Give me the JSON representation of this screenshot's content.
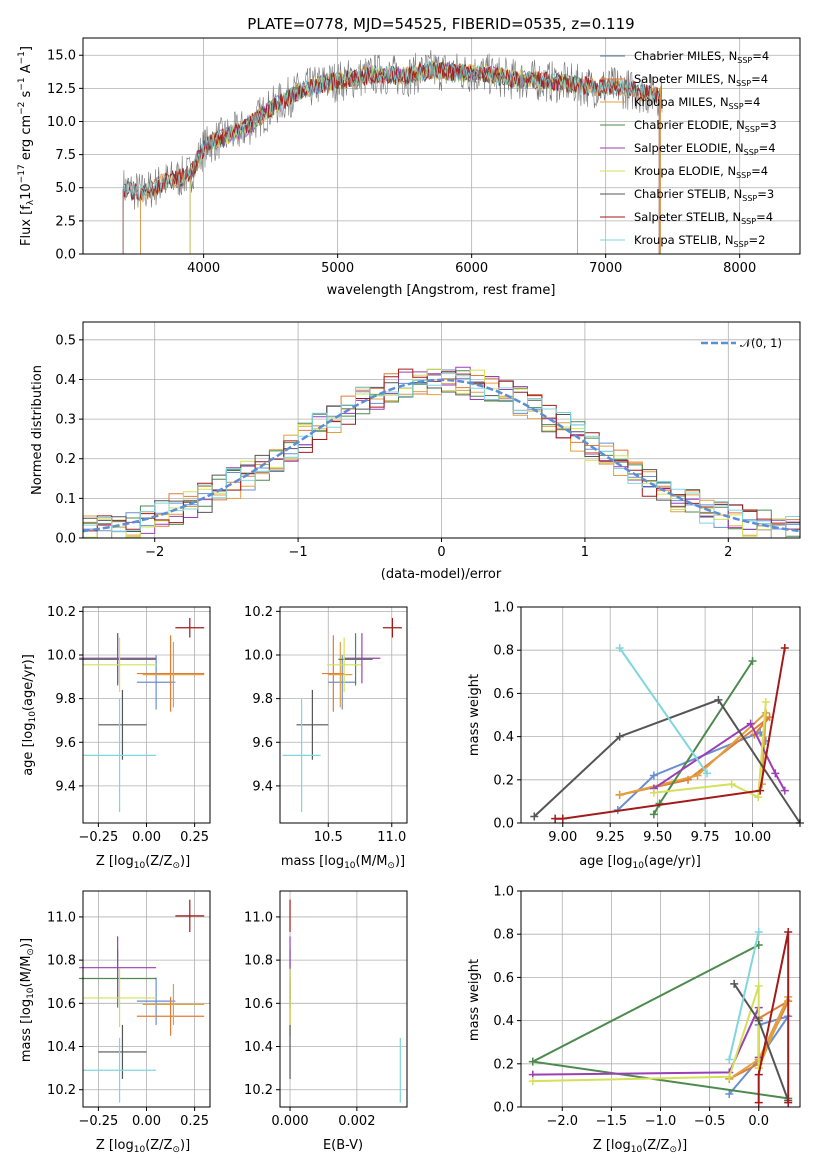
{
  "chart_data": [
    {
      "type": "line",
      "title": "PLATE=0778, MJD=54525, FIBERID=0535, z=0.119",
      "xlabel": "wavelength [Angstrom, rest frame]",
      "ylabel_main": "Flux [f",
      "ylabel_sub": "λ",
      "ylabel_rest": "10",
      "ylabel_exp": "−17",
      "ylabel_units": " erg cm",
      "ylabel_cm_exp": "−2",
      "ylabel_s": " s",
      "ylabel_s_exp": "−1",
      "ylabel_A": " A",
      "ylabel_A_exp": "−1",
      "ylabel_close": "]",
      "xlim": [
        3100,
        8450
      ],
      "ylim": [
        0,
        16.3
      ],
      "xticks": [
        4000,
        5000,
        6000,
        7000,
        8000
      ],
      "xtick_labels": [
        "4000",
        "5000",
        "6000",
        "7000",
        "8000"
      ],
      "yticks": [
        0,
        2.5,
        5,
        7.5,
        10,
        12.5,
        15
      ],
      "ytick_labels": [
        "0.0",
        "2.5",
        "5.0",
        "7.5",
        "10.0",
        "12.5",
        "15.0"
      ],
      "legend_position": "right",
      "series": [
        {
          "name": "Chabrier MILES, N",
          "sub": "SSP",
          "tail": "=4",
          "color": "#5a7d9a",
          "start": 3530,
          "end": 7410
        },
        {
          "name": "Salpeter MILES, N",
          "sub": "SSP",
          "tail": "=4",
          "color": "#e07b39",
          "start": 3530,
          "end": 7410
        },
        {
          "name": "Kroupa MILES, N",
          "sub": "SSP",
          "tail": "=4",
          "color": "#e0a040",
          "start": 3530,
          "end": 7410
        },
        {
          "name": "Chabrier ELODIE, N",
          "sub": "SSP",
          "tail": "=3",
          "color": "#4d8a4d",
          "start": 3900,
          "end": 6790
        },
        {
          "name": "Salpeter ELODIE, N",
          "sub": "SSP",
          "tail": "=4",
          "color": "#9a3fb5",
          "start": 3900,
          "end": 6790
        },
        {
          "name": "Kroupa ELODIE, N",
          "sub": "SSP",
          "tail": "=4",
          "color": "#d4e05a",
          "start": 3900,
          "end": 6790
        },
        {
          "name": "Chabrier STELIB, N",
          "sub": "SSP",
          "tail": "=3",
          "color": "#555555",
          "start": 3400,
          "end": 7400
        },
        {
          "name": "Salpeter STELIB, N",
          "sub": "SSP",
          "tail": "=4",
          "color": "#a31a1a",
          "start": 3400,
          "end": 7400
        },
        {
          "name": "Kroupa STELIB, N",
          "sub": "SSP",
          "tail": "=2",
          "color": "#7fd6dc",
          "start": 3400,
          "end": 7400
        }
      ],
      "continuum": [
        [
          3400,
          5.0
        ],
        [
          3550,
          4.6
        ],
        [
          3700,
          5.4
        ],
        [
          3900,
          6.0
        ],
        [
          4000,
          8.0
        ],
        [
          4100,
          8.6
        ],
        [
          4300,
          9.4
        ],
        [
          4500,
          11.0
        ],
        [
          4700,
          12.2
        ],
        [
          4900,
          12.9
        ],
        [
          5100,
          13.2
        ],
        [
          5300,
          13.6
        ],
        [
          5500,
          13.4
        ],
        [
          5700,
          13.9
        ],
        [
          5900,
          13.7
        ],
        [
          6100,
          13.6
        ],
        [
          6300,
          13.2
        ],
        [
          6500,
          13.1
        ],
        [
          6700,
          12.9
        ],
        [
          6900,
          12.6
        ],
        [
          7100,
          12.6
        ],
        [
          7300,
          12.1
        ],
        [
          7400,
          12.0
        ]
      ]
    },
    {
      "type": "bar",
      "xlabel": "(data-model)/error",
      "ylabel": "Normed distribution",
      "xlim": [
        -2.5,
        2.5
      ],
      "ylim": [
        0,
        0.545
      ],
      "xticks": [
        -2,
        -1,
        0,
        1,
        2
      ],
      "xtick_labels": [
        "−2",
        "−1",
        "0",
        "1",
        "2"
      ],
      "yticks": [
        0,
        0.1,
        0.2,
        0.3,
        0.4,
        0.5
      ],
      "ytick_labels": [
        "0.0",
        "0.1",
        "0.2",
        "0.3",
        "0.4",
        "0.5"
      ],
      "legend_label": "𝒩(0, 1)",
      "legend_position": "top-right",
      "gauss_color": "#5a8fd6",
      "hist_colors": [
        "#6a8fd0",
        "#e07b39",
        "#e0a040",
        "#4d8a4d",
        "#9a3fb5",
        "#d4e05a",
        "#555555",
        "#a31a1a",
        "#7fd6dc"
      ]
    },
    {
      "type": "scatter",
      "xlabel": "Z [log",
      "xlabel_sub": "10",
      "xlabel_rest": "(Z/Z",
      "xlabel_odot": "⊙",
      "xlabel_close": ")]",
      "ylabel": "age  [log",
      "ylabel_sub": "10",
      "ylabel_rest": "(age/yr)]",
      "xlim": [
        -0.33,
        0.33
      ],
      "ylim": [
        9.23,
        10.22
      ],
      "xticks": [
        -0.25,
        0,
        0.25
      ],
      "xtick_labels": [
        "−0.25",
        "0.00",
        "0.25"
      ],
      "yticks": [
        9.4,
        9.6,
        9.8,
        10.0,
        10.2
      ],
      "ytick_labels": [
        "9.4",
        "9.6",
        "9.8",
        "10.0",
        "10.2"
      ]
    },
    {
      "type": "scatter",
      "xlabel": "mass [log",
      "xlabel_sub": "10",
      "xlabel_rest": "(M/M",
      "xlabel_odot": "⊙",
      "xlabel_close": ")]",
      "xlim": [
        10.12,
        11.12
      ],
      "ylim": [
        9.23,
        10.22
      ],
      "xticks": [
        10.5,
        11.0
      ],
      "xtick_labels": [
        "10.5",
        "11.0"
      ],
      "yticks": [
        9.4,
        9.6,
        9.8,
        10.0,
        10.2
      ],
      "ytick_labels": [
        "9.4",
        "9.6",
        "9.8",
        "10.0",
        "10.2"
      ]
    },
    {
      "type": "line",
      "xlabel": "age  [log",
      "xlabel_sub": "10",
      "xlabel_rest": "(age/yr)]",
      "ylabel": "mass weight",
      "xlim": [
        8.78,
        10.25
      ],
      "ylim": [
        0,
        1
      ],
      "xticks": [
        9.0,
        9.25,
        9.5,
        9.75,
        10.0
      ],
      "xtick_labels": [
        "9.00",
        "9.25",
        "9.50",
        "9.75",
        "10.00"
      ],
      "yticks": [
        0,
        0.2,
        0.4,
        0.6,
        0.8,
        1.0
      ],
      "ytick_labels": [
        "0.0",
        "0.2",
        "0.4",
        "0.6",
        "0.8",
        "1.0"
      ]
    },
    {
      "type": "scatter",
      "xlabel": "Z [log",
      "xlabel_sub": "10",
      "xlabel_rest": "(Z/Z",
      "xlabel_odot": "⊙",
      "xlabel_close": ")]",
      "ylabel": "mass [log",
      "ylabel_sub": "10",
      "ylabel_rest": "(M/M",
      "ylabel_odot": "⊙",
      "ylabel_close": ")]",
      "xlim": [
        -0.33,
        0.33
      ],
      "ylim": [
        10.12,
        11.12
      ],
      "xticks": [
        -0.25,
        0,
        0.25
      ],
      "xtick_labels": [
        "−0.25",
        "0.00",
        "0.25"
      ],
      "yticks": [
        10.2,
        10.4,
        10.6,
        10.8,
        11.0
      ],
      "ytick_labels": [
        "10.2",
        "10.4",
        "10.6",
        "10.8",
        "11.0"
      ]
    },
    {
      "type": "scatter",
      "xlabel": "E(B-V)",
      "xlim": [
        -0.0003,
        0.0035
      ],
      "ylim": [
        10.12,
        11.12
      ],
      "xticks": [
        0,
        0.002
      ],
      "xtick_labels": [
        "0.000",
        "0.002"
      ],
      "yticks": [
        10.2,
        10.4,
        10.6,
        10.8,
        11.0
      ],
      "ytick_labels": [
        "10.2",
        "10.4",
        "10.6",
        "10.8",
        "11.0"
      ]
    },
    {
      "type": "line",
      "xlabel": "Z [log",
      "xlabel_sub": "10",
      "xlabel_rest": "(Z/Z",
      "xlabel_odot": "⊙",
      "xlabel_close": ")]",
      "ylabel": "mass weight",
      "xlim": [
        -2.42,
        0.42
      ],
      "ylim": [
        0,
        1
      ],
      "xticks": [
        -2.0,
        -1.5,
        -1.0,
        -0.5,
        0.0
      ],
      "xtick_labels": [
        "−2.0",
        "−1.5",
        "−1.0",
        "−0.5",
        "0.0"
      ],
      "yticks": [
        0,
        0.2,
        0.4,
        0.6,
        0.8,
        1.0
      ],
      "ytick_labels": [
        "0.0",
        "0.2",
        "0.4",
        "0.6",
        "0.8",
        "1.0"
      ]
    }
  ],
  "models": [
    {
      "color": "#6a8fd0",
      "Z": [
        -0.05,
        0.15
      ],
      "age": [
        9.75,
        10.0
      ],
      "mass": [
        10.5,
        10.72
      ],
      "ebv": 0.0
    },
    {
      "color": "#e07b39",
      "Z": [
        -0.05,
        0.3
      ],
      "age": [
        9.74,
        10.09
      ],
      "mass": [
        10.45,
        10.63
      ],
      "ebv": 0.0
    },
    {
      "color": "#e0a040",
      "Z": [
        -0.02,
        0.3
      ],
      "age": [
        9.76,
        10.06
      ],
      "mass": [
        10.5,
        10.69
      ],
      "ebv": 0.0
    },
    {
      "color": "#4d8a4d",
      "Z": [
        -0.35,
        0.05
      ],
      "age": [
        9.86,
        10.1
      ],
      "mass": [
        10.58,
        10.85
      ],
      "ebv": 0.0
    },
    {
      "color": "#9a3fb5",
      "Z": [
        -0.35,
        0.05
      ],
      "age": [
        9.87,
        10.1
      ],
      "mass": [
        10.62,
        10.91
      ],
      "ebv": 0.0
    },
    {
      "color": "#d4e05a",
      "Z": [
        -0.33,
        0.05
      ],
      "age": [
        9.83,
        10.08
      ],
      "mass": [
        10.49,
        10.76
      ],
      "ebv": 0.0
    },
    {
      "color": "#555555",
      "Z": [
        -0.25,
        0.0
      ],
      "age": [
        9.52,
        9.84
      ],
      "mass": [
        10.25,
        10.5
      ],
      "ebv": 0.0
    },
    {
      "color": "#a31a1a",
      "Z": [
        0.15,
        0.3
      ],
      "age": [
        10.08,
        10.17
      ],
      "mass": [
        10.93,
        11.08
      ],
      "ebv": 0.0
    },
    {
      "color": "#7fd6dc",
      "Z": [
        -0.33,
        0.05
      ],
      "age": [
        9.28,
        9.8
      ],
      "mass": [
        10.14,
        10.44
      ],
      "ebv": 0.0033
    }
  ],
  "weights": [
    {
      "color": "#6a8fd0",
      "age": [
        9.29,
        9.48,
        10.04,
        10.07
      ],
      "w": [
        0.06,
        0.22,
        0.42,
        0.38
      ],
      "Z": [
        -0.3,
        0.0,
        0.3,
        0.0
      ],
      "wz": [
        0.06,
        0.22,
        0.42,
        0.38
      ]
    },
    {
      "color": "#e07b39",
      "age": [
        9.3,
        9.66,
        10.09,
        10.01
      ],
      "w": [
        0.13,
        0.2,
        0.49,
        0.41
      ],
      "Z": [
        -0.3,
        0.0,
        0.3,
        0.0
      ],
      "wz": [
        0.13,
        0.2,
        0.49,
        0.41
      ]
    },
    {
      "color": "#e0a040",
      "age": [
        9.3,
        9.71,
        10.07,
        10.05
      ],
      "w": [
        0.13,
        0.22,
        0.51,
        0.18
      ],
      "Z": [
        -0.3,
        0.0,
        0.3,
        0.0
      ],
      "wz": [
        0.13,
        0.22,
        0.51,
        0.18
      ]
    },
    {
      "color": "#4d8a4d",
      "age": [
        9.48,
        9.51,
        10.0
      ],
      "w": [
        0.04,
        0.09,
        0.75
      ],
      "Z": [
        0.3,
        -2.3,
        0.0
      ],
      "wz": [
        0.04,
        0.21,
        0.75
      ]
    },
    {
      "color": "#9a3fb5",
      "age": [
        9.48,
        9.99,
        10.12,
        10.17
      ],
      "w": [
        0.16,
        0.46,
        0.23,
        0.15
      ],
      "Z": [
        -2.3,
        -0.3,
        0.0,
        0.0
      ],
      "wz": [
        0.15,
        0.16,
        0.46,
        0.23
      ]
    },
    {
      "color": "#d4e05a",
      "age": [
        9.48,
        9.89,
        10.03,
        10.07
      ],
      "w": [
        0.14,
        0.18,
        0.12,
        0.56
      ],
      "Z": [
        -2.3,
        -0.3,
        0.0,
        0.0
      ],
      "wz": [
        0.12,
        0.14,
        0.56,
        0.18
      ]
    },
    {
      "color": "#555555",
      "age": [
        8.85,
        9.3,
        9.82,
        10.3
      ],
      "w": [
        0.03,
        0.4,
        0.57,
        0.0
      ],
      "Z": [
        -0.25,
        0.0,
        0.3
      ],
      "wz": [
        0.57,
        0.4,
        0.03
      ]
    },
    {
      "color": "#a31a1a",
      "age": [
        8.96,
        9.0,
        10.04,
        10.17
      ],
      "w": [
        0.02,
        0.02,
        0.15,
        0.81
      ],
      "Z": [
        0.0,
        0.0,
        0.3,
        0.3
      ],
      "wz": [
        0.02,
        0.15,
        0.81,
        0.02
      ]
    },
    {
      "color": "#7fd6dc",
      "age": [
        9.3,
        9.76
      ],
      "w": [
        0.81,
        0.23
      ],
      "Z": [
        0.0,
        -0.3
      ],
      "wz": [
        0.81,
        0.22
      ]
    }
  ]
}
